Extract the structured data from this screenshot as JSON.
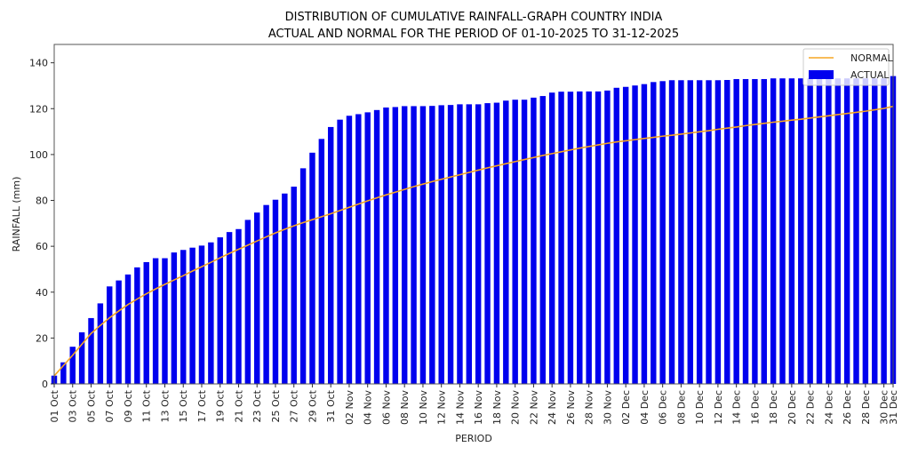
{
  "chart_data": {
    "type": "bar",
    "title": "DISTRIBUTION OF CUMULATIVE RAINFALL-GRAPH COUNTRY INDIA",
    "subtitle": "ACTUAL AND NORMAL FOR THE PERIOD OF 01-10-2025 TO 31-12-2025",
    "xlabel": "PERIOD",
    "ylabel": "RAINFALL (mm)",
    "ylim": [
      0,
      148
    ],
    "yticks": [
      0,
      20,
      40,
      60,
      80,
      100,
      120,
      140
    ],
    "grid": false,
    "legend_position": "top-right",
    "colors": {
      "actual": "#0000ee",
      "normal": "#f5a623"
    },
    "categories": [
      "01 Oct",
      "02 Oct",
      "03 Oct",
      "04 Oct",
      "05 Oct",
      "06 Oct",
      "07 Oct",
      "08 Oct",
      "09 Oct",
      "10 Oct",
      "11 Oct",
      "12 Oct",
      "13 Oct",
      "14 Oct",
      "15 Oct",
      "16 Oct",
      "17 Oct",
      "18 Oct",
      "19 Oct",
      "20 Oct",
      "21 Oct",
      "22 Oct",
      "23 Oct",
      "24 Oct",
      "25 Oct",
      "26 Oct",
      "27 Oct",
      "28 Oct",
      "29 Oct",
      "30 Oct",
      "31 Oct",
      "01 Nov",
      "02 Nov",
      "03 Nov",
      "04 Nov",
      "05 Nov",
      "06 Nov",
      "07 Nov",
      "08 Nov",
      "09 Nov",
      "10 Nov",
      "11 Nov",
      "12 Nov",
      "13 Nov",
      "14 Nov",
      "15 Nov",
      "16 Nov",
      "17 Nov",
      "18 Nov",
      "19 Nov",
      "20 Nov",
      "21 Nov",
      "22 Nov",
      "23 Nov",
      "24 Nov",
      "25 Nov",
      "26 Nov",
      "27 Nov",
      "28 Nov",
      "29 Nov",
      "30 Nov",
      "01 Dec",
      "02 Dec",
      "03 Dec",
      "04 Dec",
      "05 Dec",
      "06 Dec",
      "07 Dec",
      "08 Dec",
      "09 Dec",
      "10 Dec",
      "11 Dec",
      "12 Dec",
      "13 Dec",
      "14 Dec",
      "15 Dec",
      "16 Dec",
      "17 Dec",
      "18 Dec",
      "19 Dec",
      "20 Dec",
      "21 Dec",
      "22 Dec",
      "23 Dec",
      "24 Dec",
      "25 Dec",
      "26 Dec",
      "27 Dec",
      "28 Dec",
      "29 Dec",
      "30 Dec",
      "31 Dec"
    ],
    "xtick_labels": [
      "01 Oct",
      "03 Oct",
      "05 Oct",
      "07 Oct",
      "09 Oct",
      "11 Oct",
      "13 Oct",
      "15 Oct",
      "17 Oct",
      "19 Oct",
      "21 Oct",
      "23 Oct",
      "25 Oct",
      "27 Oct",
      "29 Oct",
      "31 Oct",
      "02 Nov",
      "04 Nov",
      "06 Nov",
      "08 Nov",
      "10 Nov",
      "12 Nov",
      "14 Nov",
      "16 Nov",
      "18 Nov",
      "20 Nov",
      "22 Nov",
      "24 Nov",
      "26 Nov",
      "28 Nov",
      "30 Nov",
      "02 Dec",
      "04 Dec",
      "06 Dec",
      "08 Dec",
      "10 Dec",
      "12 Dec",
      "14 Dec",
      "16 Dec",
      "18 Dec",
      "20 Dec",
      "22 Dec",
      "24 Dec",
      "26 Dec",
      "28 Dec",
      "30 Dec",
      "31 Dec"
    ],
    "series": [
      {
        "name": "ACTUAL",
        "kind": "bar",
        "values": [
          3.6,
          9.4,
          16.2,
          22.5,
          28.7,
          35.1,
          42.5,
          45.1,
          47.7,
          50.8,
          53.1,
          54.8,
          54.8,
          57.3,
          58.4,
          59.4,
          60.3,
          61.7,
          63.9,
          66.2,
          67.5,
          71.5,
          74.7,
          78.0,
          80.3,
          83.0,
          86.0,
          94.0,
          100.8,
          106.8,
          112.0,
          115.2,
          116.9,
          117.6,
          118.4,
          119.4,
          120.5,
          120.7,
          121.1,
          121.1,
          121.1,
          121.2,
          121.5,
          121.6,
          121.9,
          121.9,
          121.9,
          122.4,
          122.6,
          123.5,
          123.9,
          123.9,
          124.8,
          125.5,
          127.0,
          127.4,
          127.4,
          127.5,
          127.5,
          127.5,
          127.9,
          129.1,
          129.5,
          130.1,
          130.7,
          131.6,
          132.0,
          132.4,
          132.4,
          132.4,
          132.4,
          132.4,
          132.4,
          132.5,
          132.9,
          132.9,
          132.9,
          132.9,
          133.2,
          133.2,
          133.2,
          133.2,
          133.2,
          133.2,
          133.2,
          133.2,
          133.2,
          133.2,
          133.2,
          133.2,
          133.2,
          134.2
        ]
      },
      {
        "name": "NORMAL",
        "kind": "line",
        "values": [
          3.5,
          8.0,
          12.5,
          17.3,
          22.0,
          25.5,
          28.8,
          31.8,
          34.6,
          37.0,
          39.3,
          41.4,
          43.4,
          45.3,
          47.2,
          49.2,
          51.1,
          53.0,
          55.0,
          56.9,
          58.7,
          60.5,
          62.3,
          64.1,
          65.8,
          67.4,
          68.9,
          70.3,
          71.6,
          72.9,
          74.2,
          75.6,
          77.0,
          78.4,
          79.8,
          81.1,
          82.4,
          83.6,
          84.8,
          86.0,
          87.1,
          88.2,
          89.2,
          90.2,
          91.2,
          92.2,
          93.2,
          94.2,
          95.1,
          96.0,
          96.9,
          97.8,
          98.7,
          99.6,
          100.4,
          101.2,
          102.0,
          102.8,
          103.5,
          104.2,
          104.9,
          105.5,
          106.0,
          106.5,
          107.0,
          107.5,
          108.0,
          108.4,
          108.9,
          109.4,
          109.9,
          110.4,
          111.0,
          111.5,
          112.0,
          112.6,
          113.1,
          113.6,
          114.1,
          114.5,
          115.0,
          115.4,
          115.9,
          116.4,
          116.9,
          117.4,
          117.9,
          118.4,
          118.9,
          119.5,
          120.1,
          121.0
        ]
      }
    ]
  }
}
